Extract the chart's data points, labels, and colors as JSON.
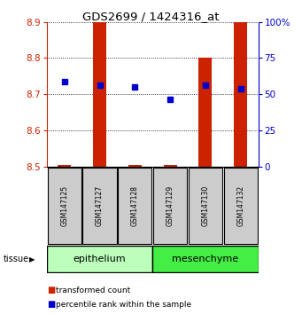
{
  "title": "GDS2699 / 1424316_at",
  "samples": [
    "GSM147125",
    "GSM147127",
    "GSM147128",
    "GSM147129",
    "GSM147130",
    "GSM147132"
  ],
  "red_bar_tops": [
    8.503,
    8.9,
    8.503,
    8.503,
    8.8,
    8.9
  ],
  "red_bar_bottom": 8.5,
  "blue_y": [
    8.735,
    8.725,
    8.72,
    8.685,
    8.725,
    8.715
  ],
  "ylim_left": [
    8.5,
    8.9
  ],
  "ylim_right": [
    0,
    100
  ],
  "yticks_left": [
    8.5,
    8.6,
    8.7,
    8.8,
    8.9
  ],
  "yticks_right": [
    0,
    25,
    50,
    75,
    100
  ],
  "tissue_labels": [
    "epithelium",
    "mesenchyme"
  ],
  "epi_color": "#bbffbb",
  "meso_color": "#44ee44",
  "bar_color": "#cc2200",
  "dot_color": "#0000cc",
  "background_color": "#ffffff",
  "legend_red_label": "transformed count",
  "legend_blue_label": "percentile rank within the sample",
  "tissue_arrow_label": "tissue",
  "red_axis_color": "#cc2200",
  "blue_axis_color": "#0000cc",
  "sample_box_color": "#cccccc",
  "n_epi": 3,
  "n_meso": 3
}
